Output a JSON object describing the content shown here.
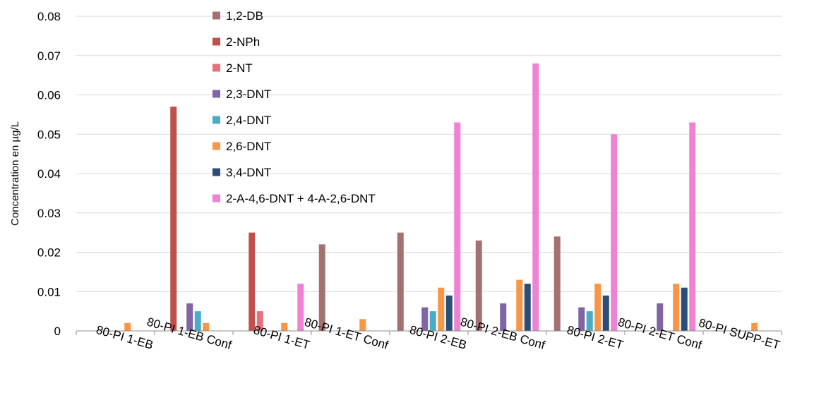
{
  "chart_data": {
    "type": "bar",
    "title": "",
    "xlabel": "",
    "ylabel": "Concentration en µg/L",
    "ylim": [
      0,
      0.08
    ],
    "yticks": [
      "0",
      "0.01",
      "0.02",
      "0.03",
      "0.04",
      "0.05",
      "0.06",
      "0.07",
      "0.08"
    ],
    "grid": true,
    "legend_position": "top-left inside",
    "categories": [
      "80-PI 1-EB",
      "80-PI 1-EB Conf",
      "80-PI 1-ET",
      "80-PI 1-ET Conf",
      "80-PI 2-EB",
      "80-PI 2-EB Conf",
      "80-PI 2-ET",
      "80-PI 2-ET Conf",
      "80-PI SUPP-ET"
    ],
    "series": [
      {
        "name": "1,2-DB",
        "color": "#a5716f",
        "values": [
          0,
          0,
          0,
          0.022,
          0.025,
          0.023,
          0.024,
          0,
          0
        ]
      },
      {
        "name": "2-NPh",
        "color": "#c0504d",
        "values": [
          0,
          0.057,
          0.025,
          0,
          0,
          0,
          0,
          0,
          0
        ]
      },
      {
        "name": "2-NT",
        "color": "#e8707b",
        "values": [
          0,
          0,
          0.005,
          0,
          0,
          0,
          0,
          0,
          0
        ]
      },
      {
        "name": "2,3-DNT",
        "color": "#7f64a6",
        "values": [
          0,
          0.007,
          0,
          0,
          0.006,
          0.007,
          0.006,
          0.007,
          0
        ]
      },
      {
        "name": "2,4-DNT",
        "color": "#4bacc6",
        "values": [
          0,
          0.005,
          0,
          0,
          0.005,
          0,
          0.005,
          0,
          0
        ]
      },
      {
        "name": "2,6-DNT",
        "color": "#f79646",
        "values": [
          0.002,
          0.002,
          0.002,
          0.003,
          0.011,
          0.013,
          0.012,
          0.012,
          0.002
        ]
      },
      {
        "name": "3,4-DNT",
        "color": "#2c4d75",
        "values": [
          0,
          0,
          0,
          0,
          0.009,
          0.012,
          0.009,
          0.011,
          0
        ]
      },
      {
        "name": "2-A-4,6-DNT + 4-A-2,6-DNT",
        "color": "#ee82d4",
        "values": [
          0,
          0,
          0.012,
          0,
          0.053,
          0.068,
          0.05,
          0.053,
          0
        ]
      }
    ]
  }
}
